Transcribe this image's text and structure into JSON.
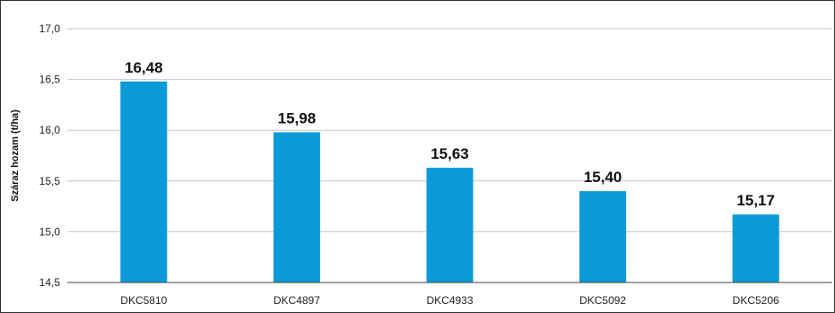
{
  "chart_data": {
    "type": "bar",
    "categories": [
      "DKC5810",
      "DKC4897",
      "DKC4933",
      "DKC5092",
      "DKC5206"
    ],
    "values": [
      16.48,
      15.98,
      15.63,
      15.4,
      15.17
    ],
    "value_labels": [
      "16,48",
      "15,98",
      "15,63",
      "15,40",
      "15,17"
    ],
    "ylabel": "Száraz hozam (t/ha)",
    "ylim": [
      14.5,
      17.0
    ],
    "yticks": [
      14.5,
      15.0,
      15.5,
      16.0,
      16.5,
      17.0
    ],
    "ytick_labels": [
      "14,5",
      "15,0",
      "15,5",
      "16,0",
      "16,5",
      "17,0"
    ],
    "grid": true,
    "bar_color": "#0a9ad8"
  }
}
